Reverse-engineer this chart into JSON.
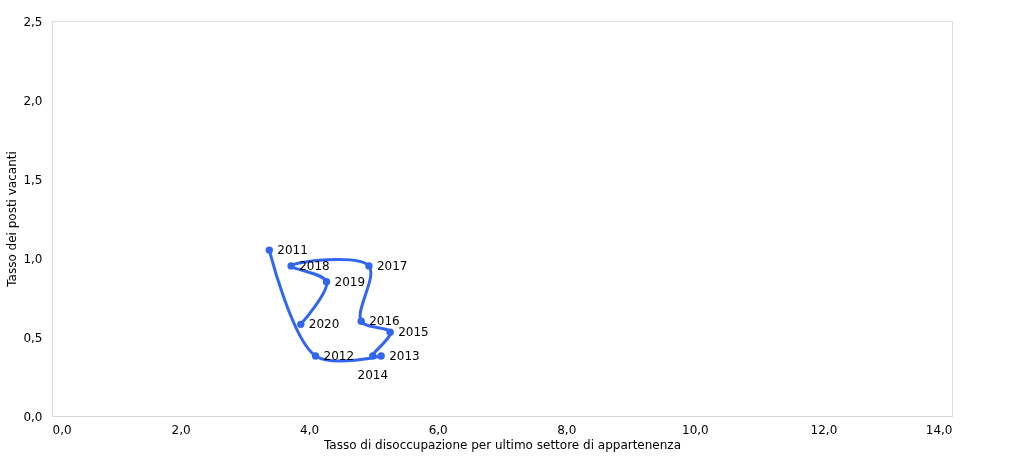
{
  "chart_data": {
    "type": "line",
    "xlabel": "Tasso di disoccupazione per ultimo settore di appartenenza",
    "ylabel": "Tasso dei posti vacanti",
    "x": [
      3.38,
      4.1,
      5.12,
      4.99,
      5.26,
      4.81,
      4.93,
      3.72,
      4.27,
      3.87
    ],
    "series": [
      {
        "color": "#3366ee",
        "values": [
          1.05,
          0.38,
          0.38,
          0.38,
          0.53,
          0.6,
          0.95,
          0.95,
          0.85,
          0.58
        ]
      }
    ],
    "annotations": [
      {
        "text": "2011",
        "x": 3.38,
        "y": 1.05
      },
      {
        "text": "2012",
        "x": 4.1,
        "y": 0.38
      },
      {
        "text": "2013",
        "x": 5.12,
        "y": 0.38
      },
      {
        "text": "2014",
        "x": 4.99,
        "y": 0.38
      },
      {
        "text": "2015",
        "x": 5.26,
        "y": 0.53
      },
      {
        "text": "2016",
        "x": 4.81,
        "y": 0.6
      },
      {
        "text": "2017",
        "x": 4.93,
        "y": 0.95
      },
      {
        "text": "2018",
        "x": 3.72,
        "y": 0.95
      },
      {
        "text": "2019",
        "x": 4.27,
        "y": 0.85
      },
      {
        "text": "2020",
        "x": 3.87,
        "y": 0.58
      }
    ],
    "xlim": [
      0,
      14
    ],
    "xticks": [
      {
        "value": 0,
        "label": "0,0"
      },
      {
        "value": 2,
        "label": "2,0"
      },
      {
        "value": 4,
        "label": "4,0"
      },
      {
        "value": 6,
        "label": "6,0"
      },
      {
        "value": 8,
        "label": "8,0"
      },
      {
        "value": 10,
        "label": "10,0"
      },
      {
        "value": 12,
        "label": "12,0"
      },
      {
        "value": 14,
        "label": "14,0"
      }
    ],
    "ylim": [
      0,
      2.5
    ],
    "yticks": [
      {
        "value": 0,
        "label": "0,0"
      },
      {
        "value": 0.5,
        "label": "0,5"
      },
      {
        "value": 1,
        "label": "1,0"
      },
      {
        "value": 1.5,
        "label": "1,5"
      },
      {
        "value": 2,
        "label": "2,0"
      },
      {
        "value": 2.5,
        "label": "2,5"
      }
    ],
    "marker": "circle",
    "grid": false
  }
}
